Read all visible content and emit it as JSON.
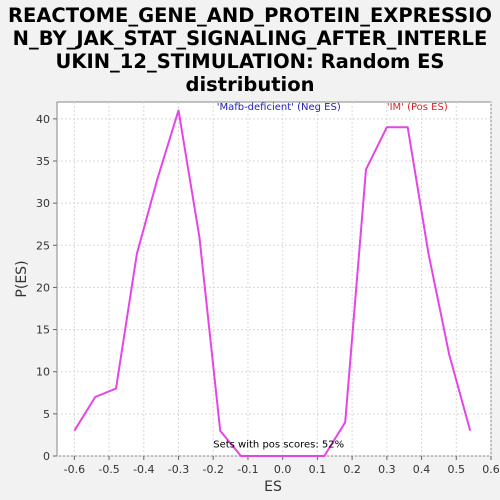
{
  "chart_data": {
    "type": "line",
    "title_lines": [
      "REACTOME_GENE_AND_PROTEIN_EXPRESSIO",
      "N_BY_JAK_STAT_SIGNALING_AFTER_INTERLE",
      "UKIN_12_STIMULATION: Random ES",
      "distribution"
    ],
    "xlabel": "ES",
    "ylabel": "P(ES)",
    "xlim": [
      -0.65,
      0.6
    ],
    "ylim": [
      0,
      42
    ],
    "xticks": [
      -0.6,
      -0.5,
      -0.4,
      -0.3,
      -0.2,
      -0.1,
      0.0,
      0.1,
      0.2,
      0.3,
      0.4,
      0.5,
      0.6
    ],
    "xtick_labels": [
      "-0.6",
      "-0.5",
      "-0.4",
      "-0.3",
      "-0.2",
      "-0.1",
      "0.0",
      "0.1",
      "0.2",
      "0.3",
      "0.4",
      "0.5",
      "0.6"
    ],
    "yticks": [
      0,
      5,
      10,
      15,
      20,
      25,
      30,
      35,
      40
    ],
    "ytick_labels": [
      "0",
      "5",
      "10",
      "15",
      "20",
      "25",
      "30",
      "35",
      "40"
    ],
    "grid": true,
    "line_color": "#e645e6",
    "series": [
      {
        "x": [
          -0.6,
          -0.54,
          -0.48,
          -0.42,
          -0.36,
          -0.3,
          -0.24,
          -0.18,
          -0.12,
          -0.06,
          0.0,
          0.06,
          0.12,
          0.18,
          0.24,
          0.3,
          0.36,
          0.42,
          0.48,
          0.54
        ],
        "y": [
          3,
          7,
          8,
          24,
          33,
          41,
          26,
          3,
          0,
          0,
          0,
          0,
          0,
          4,
          34,
          39,
          39,
          24,
          12,
          3
        ]
      }
    ],
    "annotations": [
      {
        "text": "'Mafb-deficient' (Neg ES)",
        "color": "#2222bb",
        "x": -0.19,
        "y": 41.5
      },
      {
        "text": "'IM' (Pos ES)",
        "color": "#dd2222",
        "x": 0.3,
        "y": 41.5
      },
      {
        "text": "Sets with pos scores: 52%",
        "color": "#000000",
        "x": -0.2,
        "y": 1.5
      }
    ]
  }
}
